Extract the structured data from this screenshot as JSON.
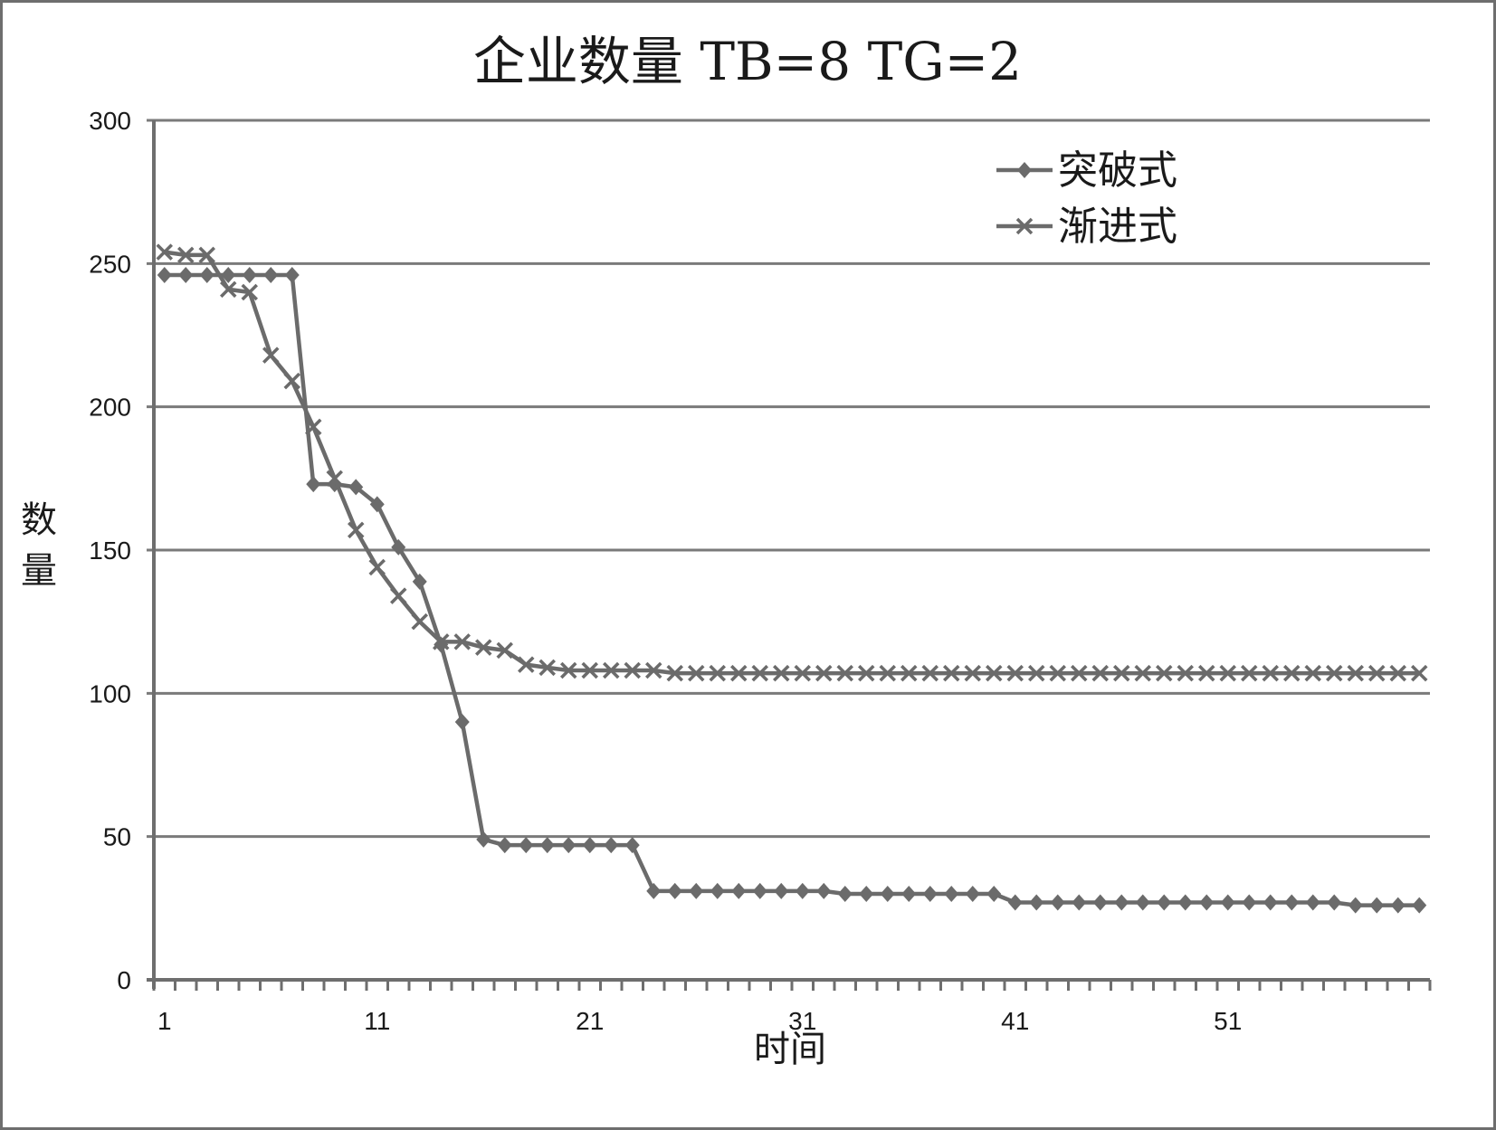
{
  "chart_data": {
    "type": "line",
    "title": "企业数量 TB=8 TG=2",
    "xlabel": "时间",
    "ylabel": "数量",
    "ylim": [
      0,
      300
    ],
    "yticks": [
      "0",
      "50",
      "100",
      "150",
      "200",
      "250",
      "300"
    ],
    "xlim": [
      1,
      60
    ],
    "xtick_labels": [
      "1",
      "11",
      "21",
      "31",
      "41",
      "51"
    ],
    "grid": "horizontal",
    "legend_position": "top-right",
    "x": [
      1,
      2,
      3,
      4,
      5,
      6,
      7,
      8,
      9,
      10,
      11,
      12,
      13,
      14,
      15,
      16,
      17,
      18,
      19,
      20,
      21,
      22,
      23,
      24,
      25,
      26,
      27,
      28,
      29,
      30,
      31,
      32,
      33,
      34,
      35,
      36,
      37,
      38,
      39,
      40,
      41,
      42,
      43,
      44,
      45,
      46,
      47,
      48,
      49,
      50,
      51,
      52,
      53,
      54,
      55,
      56,
      57,
      58,
      59,
      60
    ],
    "series": [
      {
        "name": "突破式",
        "marker": "diamond",
        "color": "#6b6b6b",
        "values": [
          246,
          246,
          246,
          246,
          246,
          246,
          246,
          173,
          173,
          172,
          166,
          151,
          139,
          117,
          90,
          49,
          47,
          47,
          47,
          47,
          47,
          47,
          47,
          31,
          31,
          31,
          31,
          31,
          31,
          31,
          31,
          31,
          30,
          30,
          30,
          30,
          30,
          30,
          30,
          30,
          27,
          27,
          27,
          27,
          27,
          27,
          27,
          27,
          27,
          27,
          27,
          27,
          27,
          27,
          27,
          27,
          26,
          26,
          26,
          26
        ]
      },
      {
        "name": "渐进式",
        "marker": "x",
        "color": "#6b6b6b",
        "values": [
          254,
          253,
          253,
          241,
          240,
          218,
          209,
          193,
          175,
          157,
          144,
          134,
          125,
          118,
          118,
          116,
          115,
          110,
          109,
          108,
          108,
          108,
          108,
          108,
          107,
          107,
          107,
          107,
          107,
          107,
          107,
          107,
          107,
          107,
          107,
          107,
          107,
          107,
          107,
          107,
          107,
          107,
          107,
          107,
          107,
          107,
          107,
          107,
          107,
          107,
          107,
          107,
          107,
          107,
          107,
          107,
          107,
          107,
          107,
          107
        ]
      }
    ]
  }
}
